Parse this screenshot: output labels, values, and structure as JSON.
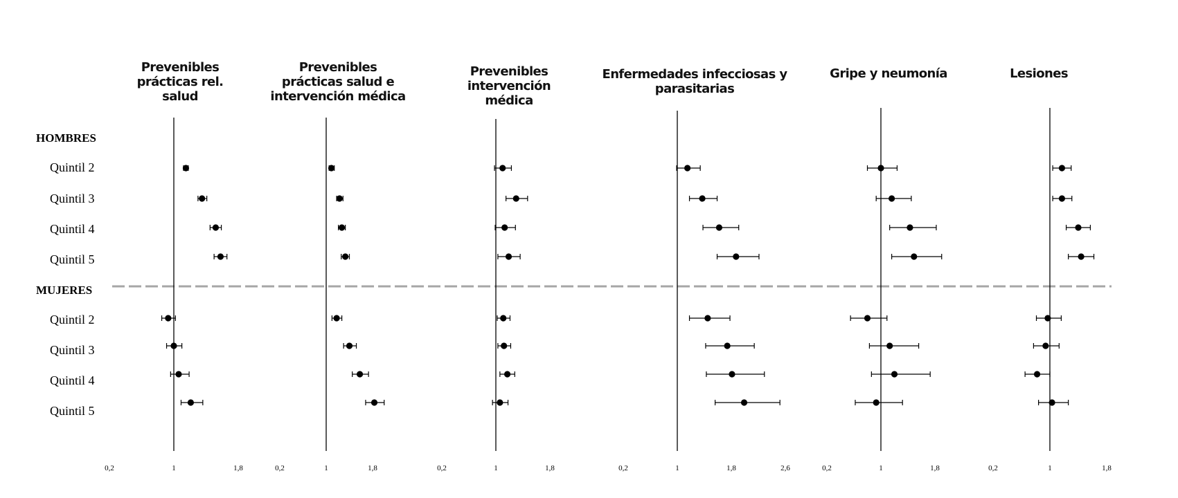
{
  "chart_data": {
    "type": "forest",
    "groups": [
      {
        "label": "HOMBRES",
        "rows": [
          "Quintil 2",
          "Quintil 3",
          "Quintil 4",
          "Quintil 5"
        ]
      },
      {
        "label": "MUJERES",
        "rows": [
          "Quintil 2",
          "Quintil 3",
          "Quintil 4",
          "Quintil 5"
        ]
      }
    ],
    "reference_value": 1,
    "panels": [
      {
        "title": "Prevenibles prácticas rel. salud",
        "xlim": [
          0.2,
          1.8
        ],
        "ticks": [
          0.2,
          1,
          1.8
        ],
        "tick_labels": [
          "0,2",
          "1",
          "1,8"
        ],
        "points": [
          {
            "est": 1.15,
            "lo": 1.12,
            "hi": 1.18
          },
          {
            "est": 1.35,
            "lo": 1.3,
            "hi": 1.41
          },
          {
            "est": 1.52,
            "lo": 1.45,
            "hi": 1.59
          },
          {
            "est": 1.58,
            "lo": 1.5,
            "hi": 1.66
          },
          {
            "est": 0.93,
            "lo": 0.85,
            "hi": 1.02
          },
          {
            "est": 1.0,
            "lo": 0.91,
            "hi": 1.1
          },
          {
            "est": 1.06,
            "lo": 0.96,
            "hi": 1.19
          },
          {
            "est": 1.21,
            "lo": 1.09,
            "hi": 1.36
          }
        ]
      },
      {
        "title": "Prevenibles prácticas salud e intervención médica",
        "xlim": [
          0.2,
          1.8
        ],
        "ticks": [
          0.2,
          1,
          1.8
        ],
        "tick_labels": [
          "0,2",
          "1",
          "1,8"
        ],
        "points": [
          {
            "est": 1.09,
            "lo": 1.05,
            "hi": 1.14
          },
          {
            "est": 1.23,
            "lo": 1.18,
            "hi": 1.29
          },
          {
            "est": 1.27,
            "lo": 1.21,
            "hi": 1.33
          },
          {
            "est": 1.33,
            "lo": 1.26,
            "hi": 1.4
          },
          {
            "est": 1.18,
            "lo": 1.1,
            "hi": 1.27
          },
          {
            "est": 1.4,
            "lo": 1.3,
            "hi": 1.52
          },
          {
            "est": 1.58,
            "lo": 1.45,
            "hi": 1.73
          },
          {
            "est": 1.83,
            "lo": 1.68,
            "hi": 2.0
          }
        ]
      },
      {
        "title": "Prevenibles intervención médica",
        "xlim": [
          0.2,
          1.8
        ],
        "ticks": [
          0.2,
          1,
          1.8
        ],
        "tick_labels": [
          "0,2",
          "1",
          "1,8"
        ],
        "points": [
          {
            "est": 1.1,
            "lo": 0.98,
            "hi": 1.23
          },
          {
            "est": 1.3,
            "lo": 1.15,
            "hi": 1.47
          },
          {
            "est": 1.13,
            "lo": 0.99,
            "hi": 1.29
          },
          {
            "est": 1.19,
            "lo": 1.03,
            "hi": 1.36
          },
          {
            "est": 1.11,
            "lo": 1.02,
            "hi": 1.21
          },
          {
            "est": 1.12,
            "lo": 1.03,
            "hi": 1.22
          },
          {
            "est": 1.17,
            "lo": 1.06,
            "hi": 1.28
          },
          {
            "est": 1.06,
            "lo": 0.95,
            "hi": 1.18
          }
        ]
      },
      {
        "title": "Enfermedades infecciosas y parasitarias",
        "xlim": [
          0.2,
          2.6
        ],
        "ticks": [
          0.2,
          1,
          1.8,
          2.6
        ],
        "tick_labels": [
          "0,2",
          "1",
          "1,8",
          "2,6"
        ],
        "points": [
          {
            "est": 1.15,
            "lo": 0.99,
            "hi": 1.34
          },
          {
            "est": 1.37,
            "lo": 1.18,
            "hi": 1.59
          },
          {
            "est": 1.62,
            "lo": 1.38,
            "hi": 1.91
          },
          {
            "est": 1.87,
            "lo": 1.59,
            "hi": 2.21
          },
          {
            "est": 1.45,
            "lo": 1.18,
            "hi": 1.78
          },
          {
            "est": 1.74,
            "lo": 1.42,
            "hi": 2.14
          },
          {
            "est": 1.81,
            "lo": 1.43,
            "hi": 2.29
          },
          {
            "est": 1.99,
            "lo": 1.56,
            "hi": 2.52
          }
        ]
      },
      {
        "title": "Gripe y neumonía",
        "xlim": [
          0.2,
          1.8
        ],
        "ticks": [
          0.2,
          1,
          1.8
        ],
        "tick_labels": [
          "0,2",
          "1",
          "1,8"
        ],
        "points": [
          {
            "est": 1.0,
            "lo": 0.8,
            "hi": 1.24
          },
          {
            "est": 1.16,
            "lo": 0.93,
            "hi": 1.45
          },
          {
            "est": 1.43,
            "lo": 1.13,
            "hi": 1.82
          },
          {
            "est": 1.49,
            "lo": 1.16,
            "hi": 1.9
          },
          {
            "est": 0.8,
            "lo": 0.55,
            "hi": 1.09
          },
          {
            "est": 1.13,
            "lo": 0.83,
            "hi": 1.56
          },
          {
            "est": 1.2,
            "lo": 0.86,
            "hi": 1.73
          },
          {
            "est": 0.93,
            "lo": 0.62,
            "hi": 1.32
          }
        ]
      },
      {
        "title": "Lesiones",
        "xlim": [
          0.2,
          1.8
        ],
        "ticks": [
          0.2,
          1,
          1.8
        ],
        "tick_labels": [
          "0,2",
          "1",
          "1,8"
        ],
        "points": [
          {
            "est": 1.17,
            "lo": 1.04,
            "hi": 1.3
          },
          {
            "est": 1.17,
            "lo": 1.04,
            "hi": 1.31
          },
          {
            "est": 1.4,
            "lo": 1.23,
            "hi": 1.57
          },
          {
            "est": 1.44,
            "lo": 1.26,
            "hi": 1.62
          },
          {
            "est": 0.97,
            "lo": 0.81,
            "hi": 1.16
          },
          {
            "est": 0.94,
            "lo": 0.77,
            "hi": 1.13
          },
          {
            "est": 0.82,
            "lo": 0.65,
            "hi": 1.0
          },
          {
            "est": 1.03,
            "lo": 0.84,
            "hi": 1.26
          }
        ]
      }
    ],
    "separator": {
      "style": "dashed",
      "color": "#a6a6a6"
    },
    "marker_color": "#000000"
  }
}
